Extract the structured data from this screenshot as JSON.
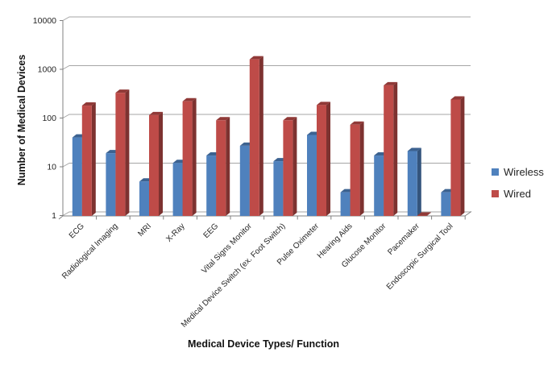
{
  "chart_data": {
    "type": "bar",
    "orientation": "vertical",
    "y_scale": "log",
    "title": "",
    "xlabel": "Medical Device Types/ Function",
    "ylabel": "Number of Medical Devices",
    "ylim": [
      1,
      10000
    ],
    "y_ticks": [
      "1",
      "10",
      "100",
      "1000",
      "10000"
    ],
    "grid": true,
    "legend_position": "right",
    "categories": [
      "ECG",
      "Radiological Imaging",
      "MRI",
      "X-Ray",
      "EEG",
      "Vital Signs Monitor",
      "Medical Device Switch (ex. Foot Switch)",
      "Pulse Oximeter",
      "Hearing Aids",
      "Glucose Monitor",
      "Pacemaker",
      "Endoscopic Surgical Tool"
    ],
    "series": [
      {
        "name": "Wireless",
        "color": "#4F81BD",
        "values": [
          40,
          19,
          5,
          12,
          17,
          27,
          13,
          45,
          3,
          17,
          21,
          3
        ]
      },
      {
        "name": "Wired",
        "color": "#BE4B48",
        "values": [
          180,
          330,
          115,
          220,
          90,
          1600,
          90,
          185,
          73,
          470,
          1,
          240
        ]
      }
    ],
    "style": {
      "gridline_color": "#A6A6A6",
      "axis_color": "#808080",
      "text_color": "#242424",
      "background": "#FFFFFF"
    }
  }
}
